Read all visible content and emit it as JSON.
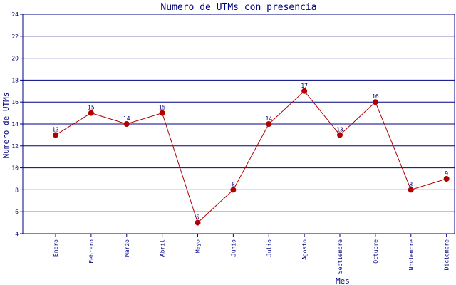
{
  "chart_data": {
    "type": "line",
    "title": "Numero de UTMs con presencia",
    "xlabel": "Mes",
    "ylabel": "Numero de UTMs",
    "categories": [
      "Enero",
      "Febrero",
      "Marzo",
      "Abril",
      "Mayo",
      "Junio",
      "Julio",
      "Agosto",
      "Septiembre",
      "Octubre",
      "Noviembre",
      "Diciembre"
    ],
    "series": [
      {
        "values": [
          13,
          15,
          14,
          15,
          5,
          8,
          14,
          17,
          13,
          16,
          8,
          9
        ]
      }
    ],
    "ylim": [
      4,
      24
    ],
    "yticks": [
      4,
      6,
      8,
      10,
      12,
      14,
      16,
      18,
      20,
      22,
      24
    ],
    "grid": "horizontal",
    "data_labels": true,
    "colors": {
      "line": "#b00000",
      "marker": "#b00000",
      "text": "#000080",
      "grid": "#000080",
      "axis": "#000080"
    }
  }
}
